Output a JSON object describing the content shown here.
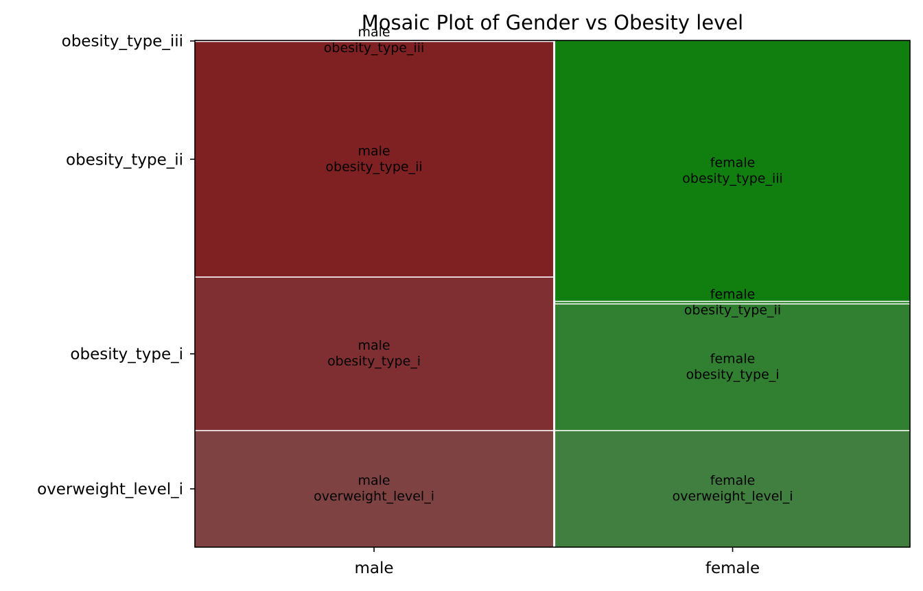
{
  "chart_data": {
    "type": "mosaic",
    "title": "Mosaic Plot of Gender vs Obesity level",
    "x_categories": [
      "male",
      "female"
    ],
    "y_categories": [
      "overweight_level_i",
      "obesity_type_i",
      "obesity_type_ii",
      "obesity_type_iii"
    ],
    "x_proportions": [
      0.5025,
      0.4975
    ],
    "tiles": [
      {
        "x": "male",
        "y": "overweight_level_i",
        "proportion": 0.23,
        "color": "#7f4242",
        "label_lines": [
          "male",
          "overweight_level_i"
        ]
      },
      {
        "x": "male",
        "y": "obesity_type_i",
        "proportion": 0.303,
        "color": "#7f2f31",
        "label_lines": [
          "male",
          "obesity_type_i"
        ]
      },
      {
        "x": "male",
        "y": "obesity_type_ii",
        "proportion": 0.465,
        "color": "#7f2022",
        "label_lines": [
          "male",
          "obesity_type_ii"
        ]
      },
      {
        "x": "male",
        "y": "obesity_type_iii",
        "proportion": 0.002,
        "color": "#7f1010",
        "label_lines": [
          "male",
          "obesity_type_iii"
        ]
      },
      {
        "x": "female",
        "y": "overweight_level_i",
        "proportion": 0.23,
        "color": "#417f41",
        "label_lines": [
          "female",
          "overweight_level_i"
        ]
      },
      {
        "x": "female",
        "y": "obesity_type_i",
        "proportion": 0.25,
        "color": "#317f31",
        "label_lines": [
          "female",
          "obesity_type_i"
        ]
      },
      {
        "x": "female",
        "y": "obesity_type_ii",
        "proportion": 0.005,
        "color": "#207f20",
        "label_lines": [
          "female",
          "obesity_type_ii"
        ]
      },
      {
        "x": "female",
        "y": "obesity_type_iii",
        "proportion": 0.515,
        "color": "#107f10",
        "label_lines": [
          "female",
          "obesity_type_iii"
        ]
      }
    ],
    "grid": false,
    "legend": "none"
  }
}
